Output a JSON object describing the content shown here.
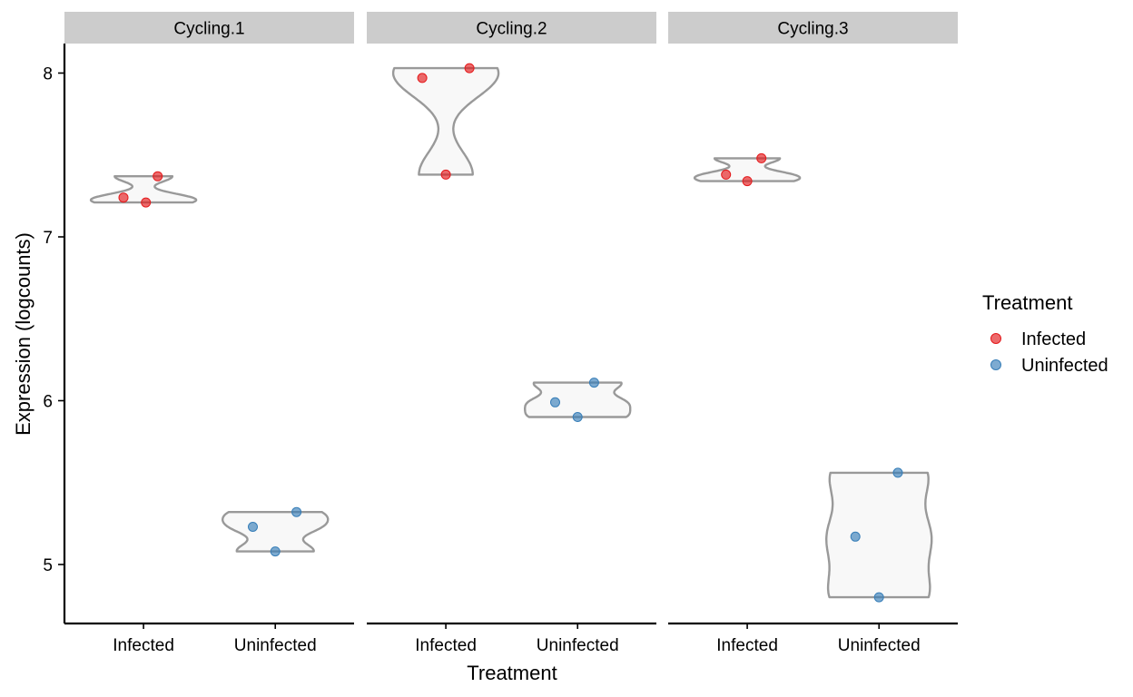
{
  "chart_data": {
    "type": "violin",
    "ylabel": "Expression (logcounts)",
    "xlabel": "Treatment",
    "categories": [
      "Infected",
      "Uninfected"
    ],
    "y_ticks": [
      5,
      6,
      7,
      8
    ],
    "ylim": [
      4.65,
      8.2
    ],
    "legend": {
      "title": "Treatment",
      "position": "right",
      "entries": [
        {
          "label": "Infected",
          "color": "#E41A1C"
        },
        {
          "label": "Uninfected",
          "color": "#377EB8"
        }
      ]
    },
    "panels": [
      {
        "title": "Cycling.1",
        "groups": [
          {
            "treatment": "Infected",
            "points": [
              {
                "x": -0.17,
                "y": 7.24
              },
              {
                "x": 0.02,
                "y": 7.21
              },
              {
                "x": 0.12,
                "y": 7.37
              }
            ]
          },
          {
            "treatment": "Uninfected",
            "points": [
              {
                "x": -0.19,
                "y": 5.23
              },
              {
                "x": 0.0,
                "y": 5.08
              },
              {
                "x": 0.18,
                "y": 5.32
              }
            ]
          }
        ]
      },
      {
        "title": "Cycling.2",
        "groups": [
          {
            "treatment": "Infected",
            "points": [
              {
                "x": -0.2,
                "y": 7.97
              },
              {
                "x": 0.0,
                "y": 7.38
              },
              {
                "x": 0.2,
                "y": 8.03
              }
            ]
          },
          {
            "treatment": "Uninfected",
            "points": [
              {
                "x": -0.19,
                "y": 5.99
              },
              {
                "x": 0.0,
                "y": 5.9
              },
              {
                "x": 0.14,
                "y": 6.11
              }
            ]
          }
        ]
      },
      {
        "title": "Cycling.3",
        "groups": [
          {
            "treatment": "Infected",
            "points": [
              {
                "x": -0.18,
                "y": 7.38
              },
              {
                "x": 0.0,
                "y": 7.34
              },
              {
                "x": 0.12,
                "y": 7.48
              }
            ]
          },
          {
            "treatment": "Uninfected",
            "points": [
              {
                "x": -0.2,
                "y": 5.17
              },
              {
                "x": 0.0,
                "y": 4.8
              },
              {
                "x": 0.16,
                "y": 5.56
              }
            ]
          }
        ]
      }
    ]
  }
}
